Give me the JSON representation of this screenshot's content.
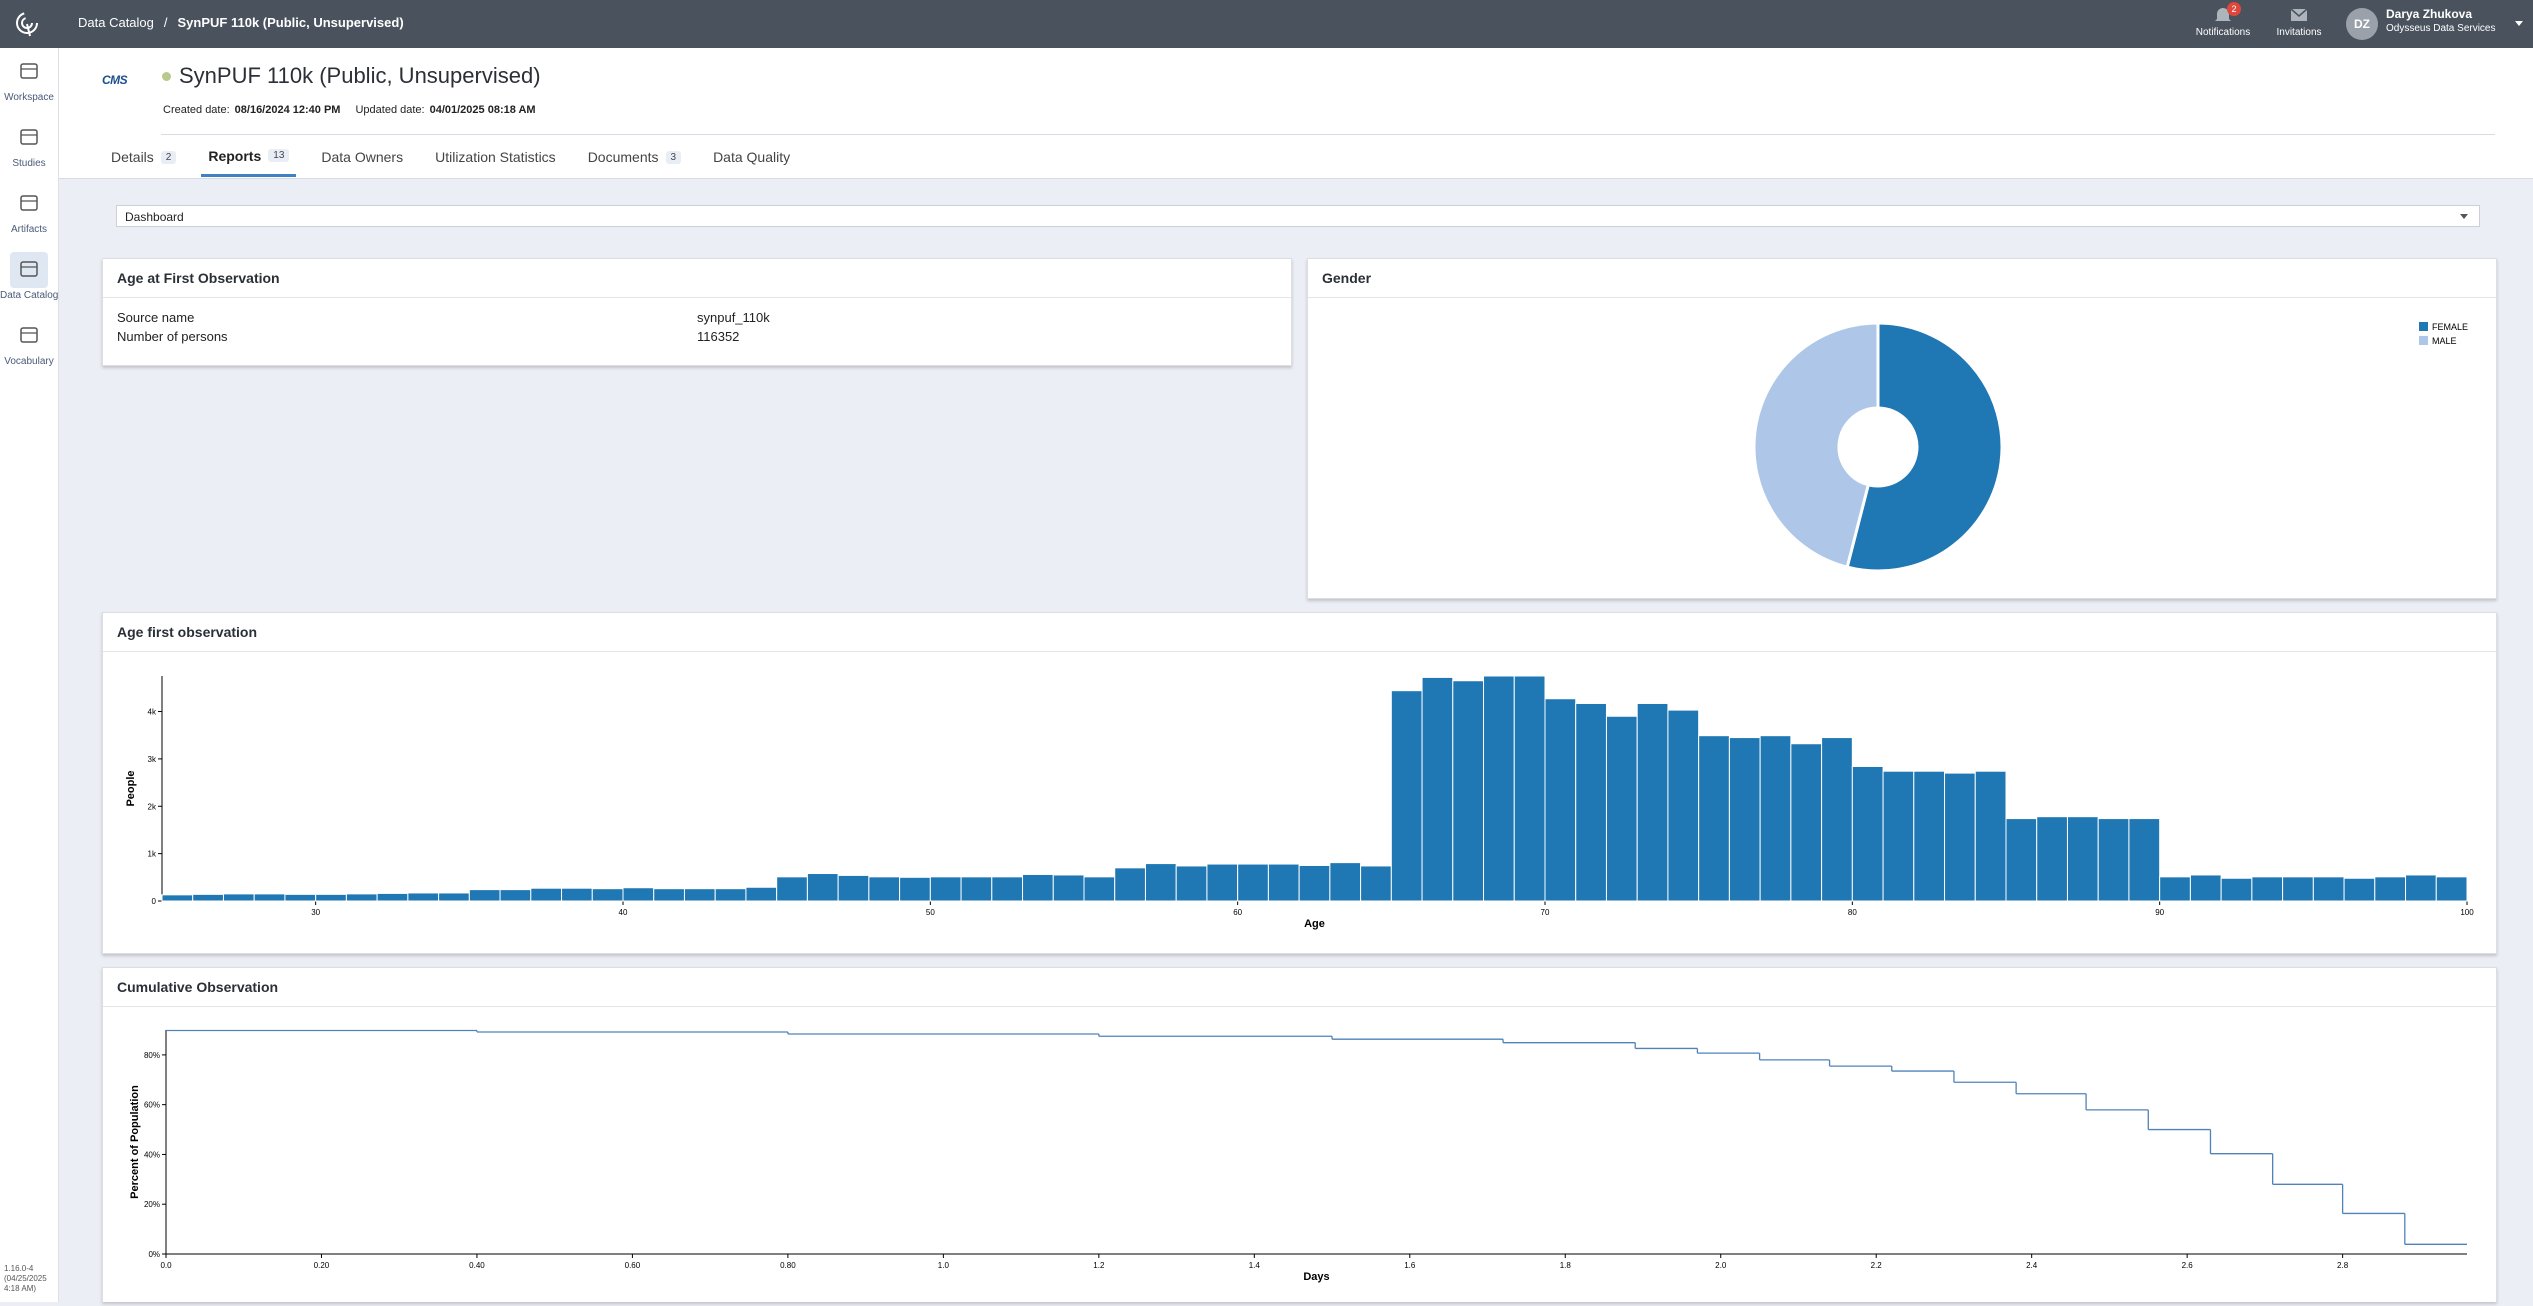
{
  "topbar": {
    "breadcrumb": [
      "Data Catalog",
      "SynPUF 110k (Public, Unsupervised)"
    ],
    "breadcrumb_separator": "/",
    "notifications": {
      "label": "Notifications",
      "count": 2
    },
    "invitations": "Invitations",
    "user": {
      "initials": "DZ",
      "name": "Darya Zhukova",
      "org": "Odysseus Data Services"
    }
  },
  "sidebar": {
    "items": [
      "Workspace",
      "Studies",
      "Artifacts",
      "Data Catalog",
      "Vocabulary"
    ],
    "active": 3,
    "version": "1.16.0-4 (04/25/2025 4:18 AM)"
  },
  "header": {
    "logo": "CMS",
    "title": "SynPUF 110k (Public, Unsupervised)",
    "created_label": "Created date:",
    "created": "08/16/2024 12:40 PM",
    "updated_label": "Updated date:",
    "updated": "04/01/2025 08:18 AM"
  },
  "tabs": [
    {
      "label": "Details",
      "count": 2
    },
    {
      "label": "Reports",
      "count": 13
    },
    {
      "label": "Data Owners"
    },
    {
      "label": "Utilization Statistics"
    },
    {
      "label": "Documents",
      "count": 3
    },
    {
      "label": "Data Quality"
    }
  ],
  "active_tab": 1,
  "report_select": "Dashboard",
  "summary": {
    "title": "Age at First Observation",
    "rows": [
      [
        "Source name",
        "synpuf_110k"
      ],
      [
        "Number of persons",
        "116352"
      ]
    ]
  },
  "chart_data": [
    {
      "type": "pie",
      "title": "Gender",
      "donut": true,
      "categories": [
        "FEMALE",
        "MALE"
      ],
      "values": [
        54,
        46
      ],
      "colors": [
        "#1f77b4",
        "#aec7e8"
      ]
    },
    {
      "type": "histogram",
      "title": "Age first observation",
      "x_label": "Age",
      "y_label": "People",
      "color": "#1f77b4",
      "bins": [
        25,
        26,
        27,
        28,
        29,
        30,
        31,
        32,
        33,
        34,
        35,
        36,
        37,
        38,
        39,
        40,
        41,
        42,
        43,
        44,
        45,
        46,
        47,
        48,
        49,
        50,
        51,
        52,
        53,
        54,
        55,
        56,
        57,
        58,
        59,
        60,
        61,
        62,
        63,
        64,
        65,
        66,
        67,
        68,
        69,
        70,
        71,
        72,
        73,
        74,
        75,
        76,
        77,
        78,
        79,
        80,
        81,
        82,
        83,
        84,
        85,
        86,
        87,
        88,
        89,
        90,
        91,
        92,
        93,
        94,
        95,
        96,
        97,
        98,
        99,
        100
      ],
      "values": [
        130,
        140,
        150,
        150,
        140,
        140,
        150,
        160,
        170,
        170,
        240,
        240,
        270,
        270,
        260,
        280,
        260,
        260,
        260,
        290,
        510,
        580,
        540,
        510,
        500,
        510,
        510,
        510,
        560,
        550,
        510,
        700,
        790,
        740,
        780,
        780,
        780,
        750,
        810,
        740,
        4440,
        4720,
        4650,
        4750,
        4750,
        4270,
        4170,
        3900,
        4170,
        4030,
        3490,
        3450,
        3490,
        3320,
        3450,
        2840,
        2740,
        2740,
        2700,
        2740,
        1740,
        1780,
        1780,
        1740,
        1740,
        510,
        550,
        480,
        510,
        510,
        510,
        480,
        510,
        550,
        510
      ],
      "xlim": [
        25,
        100
      ],
      "xticks": [
        30,
        40,
        50,
        60,
        70,
        80,
        90,
        100
      ],
      "ylim": [
        0,
        4750
      ],
      "yticks": [
        0,
        {
          "value": 1000,
          "label": "1k"
        },
        {
          "value": 2000,
          "label": "2k"
        },
        {
          "value": 3000,
          "label": "3k"
        },
        {
          "value": 4000,
          "label": "4k"
        }
      ]
    },
    {
      "type": "line",
      "title": "Cumulative Observation",
      "x_label": "Days",
      "y_label": "Percent of Population",
      "color": "#4f83b8",
      "drawstyle": "steps-post",
      "x": [
        0,
        0.4,
        0.8,
        1.2,
        1.5,
        1.72,
        1.89,
        1.97,
        2.05,
        2.14,
        2.22,
        2.3,
        2.38,
        2.47,
        2.55,
        2.63,
        2.71,
        2.8,
        2.88
      ],
      "values": [
        89.8,
        89.2,
        88.4,
        87.5,
        86.3,
        84.9,
        82.6,
        80.7,
        78.0,
        75.5,
        73.5,
        69.0,
        64.4,
        57.9,
        50.0,
        40.3,
        28.0,
        16.3,
        3.9
      ],
      "xlim": [
        0,
        2.96
      ],
      "xticks": [
        {
          "value": 0,
          "label": "0.0"
        },
        {
          "value": 0.2,
          "label": "0.20"
        },
        {
          "value": 0.4,
          "label": "0.40"
        },
        {
          "value": 0.6,
          "label": "0.60"
        },
        {
          "value": 0.8,
          "label": "0.80"
        },
        {
          "value": 1,
          "label": "1.0"
        },
        1.2,
        1.4,
        1.6,
        1.8,
        {
          "value": 2,
          "label": "2.0"
        },
        2.2,
        2.4,
        2.6,
        2.8
      ],
      "ylim": [
        0,
        90
      ],
      "yticks": [
        {
          "value": 0,
          "label": "0%"
        },
        {
          "value": 20,
          "label": "20%"
        },
        {
          "value": 40,
          "label": "40%"
        },
        {
          "value": 60,
          "label": "60%"
        },
        {
          "value": 80,
          "label": "80%"
        }
      ]
    }
  ]
}
